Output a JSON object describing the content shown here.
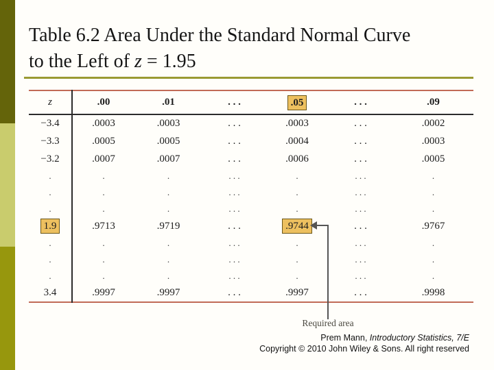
{
  "title": {
    "line1": "Table 6.2 Area Under the Standard Normal Curve",
    "line2_prefix": "to the Left of ",
    "line2_var": "z",
    "line2_suffix": " = 1.95"
  },
  "table": {
    "header": [
      "z",
      ".00",
      ".01",
      ". . .",
      ".05",
      ". . .",
      ".09"
    ],
    "header_highlight_index": 4,
    "rows": [
      {
        "type": "data",
        "z": "−3.4",
        "cells": [
          ".0003",
          ".0003",
          ". . .",
          ".0003",
          ". . .",
          ".0002"
        ]
      },
      {
        "type": "data",
        "z": "−3.3",
        "cells": [
          ".0005",
          ".0005",
          ". . .",
          ".0004",
          ". . .",
          ".0003"
        ]
      },
      {
        "type": "data",
        "z": "−3.2",
        "cells": [
          ".0007",
          ".0007",
          ". . .",
          ".0006",
          ". . .",
          ".0005"
        ]
      },
      {
        "type": "dots",
        "z": ".",
        "cells": [
          ".",
          ".",
          ". . .",
          ".",
          ". . .",
          "."
        ]
      },
      {
        "type": "dots",
        "z": ".",
        "cells": [
          ".",
          ".",
          ". . .",
          ".",
          ". . .",
          "."
        ]
      },
      {
        "type": "dots",
        "z": ".",
        "cells": [
          ".",
          ".",
          ". . .",
          ".",
          ". . .",
          "."
        ]
      },
      {
        "type": "data",
        "z": "1.9",
        "z_highlighted": true,
        "highlight_cell_index": 3,
        "cells": [
          ".9713",
          ".9719",
          ". . .",
          ".9744",
          ". . .",
          ".9767"
        ]
      },
      {
        "type": "dots",
        "z": ".",
        "cells": [
          ".",
          ".",
          ". . .",
          ".",
          ". . .",
          "."
        ]
      },
      {
        "type": "dots",
        "z": ".",
        "cells": [
          ".",
          ".",
          ". . .",
          ".",
          ". . .",
          "."
        ]
      },
      {
        "type": "dots",
        "z": ".",
        "cells": [
          ".",
          ".",
          ". . .",
          ".",
          ". . .",
          "."
        ]
      },
      {
        "type": "data",
        "z": "3.4",
        "cells": [
          ".9997",
          ".9997",
          ". . .",
          ".9997",
          ". . .",
          ".9998"
        ]
      }
    ]
  },
  "annotation": {
    "label": "Required area"
  },
  "footer": {
    "credit_normal": "Prem Mann, ",
    "credit_italic": "Introductory Statistics, 7/E",
    "copyright_line": "Copyright © 2010 John Wiley & Sons. All right reserved"
  },
  "colors": {
    "sidebar_top": "#64640a",
    "sidebar_middle": "#c9cc6d",
    "sidebar_bottom": "#97970d",
    "title_rule": "#9a9a33",
    "table_rule_red": "#c16a56",
    "highlight_fill": "#edc05f",
    "highlight_border": "#6b5617",
    "arrow": "#555555"
  }
}
